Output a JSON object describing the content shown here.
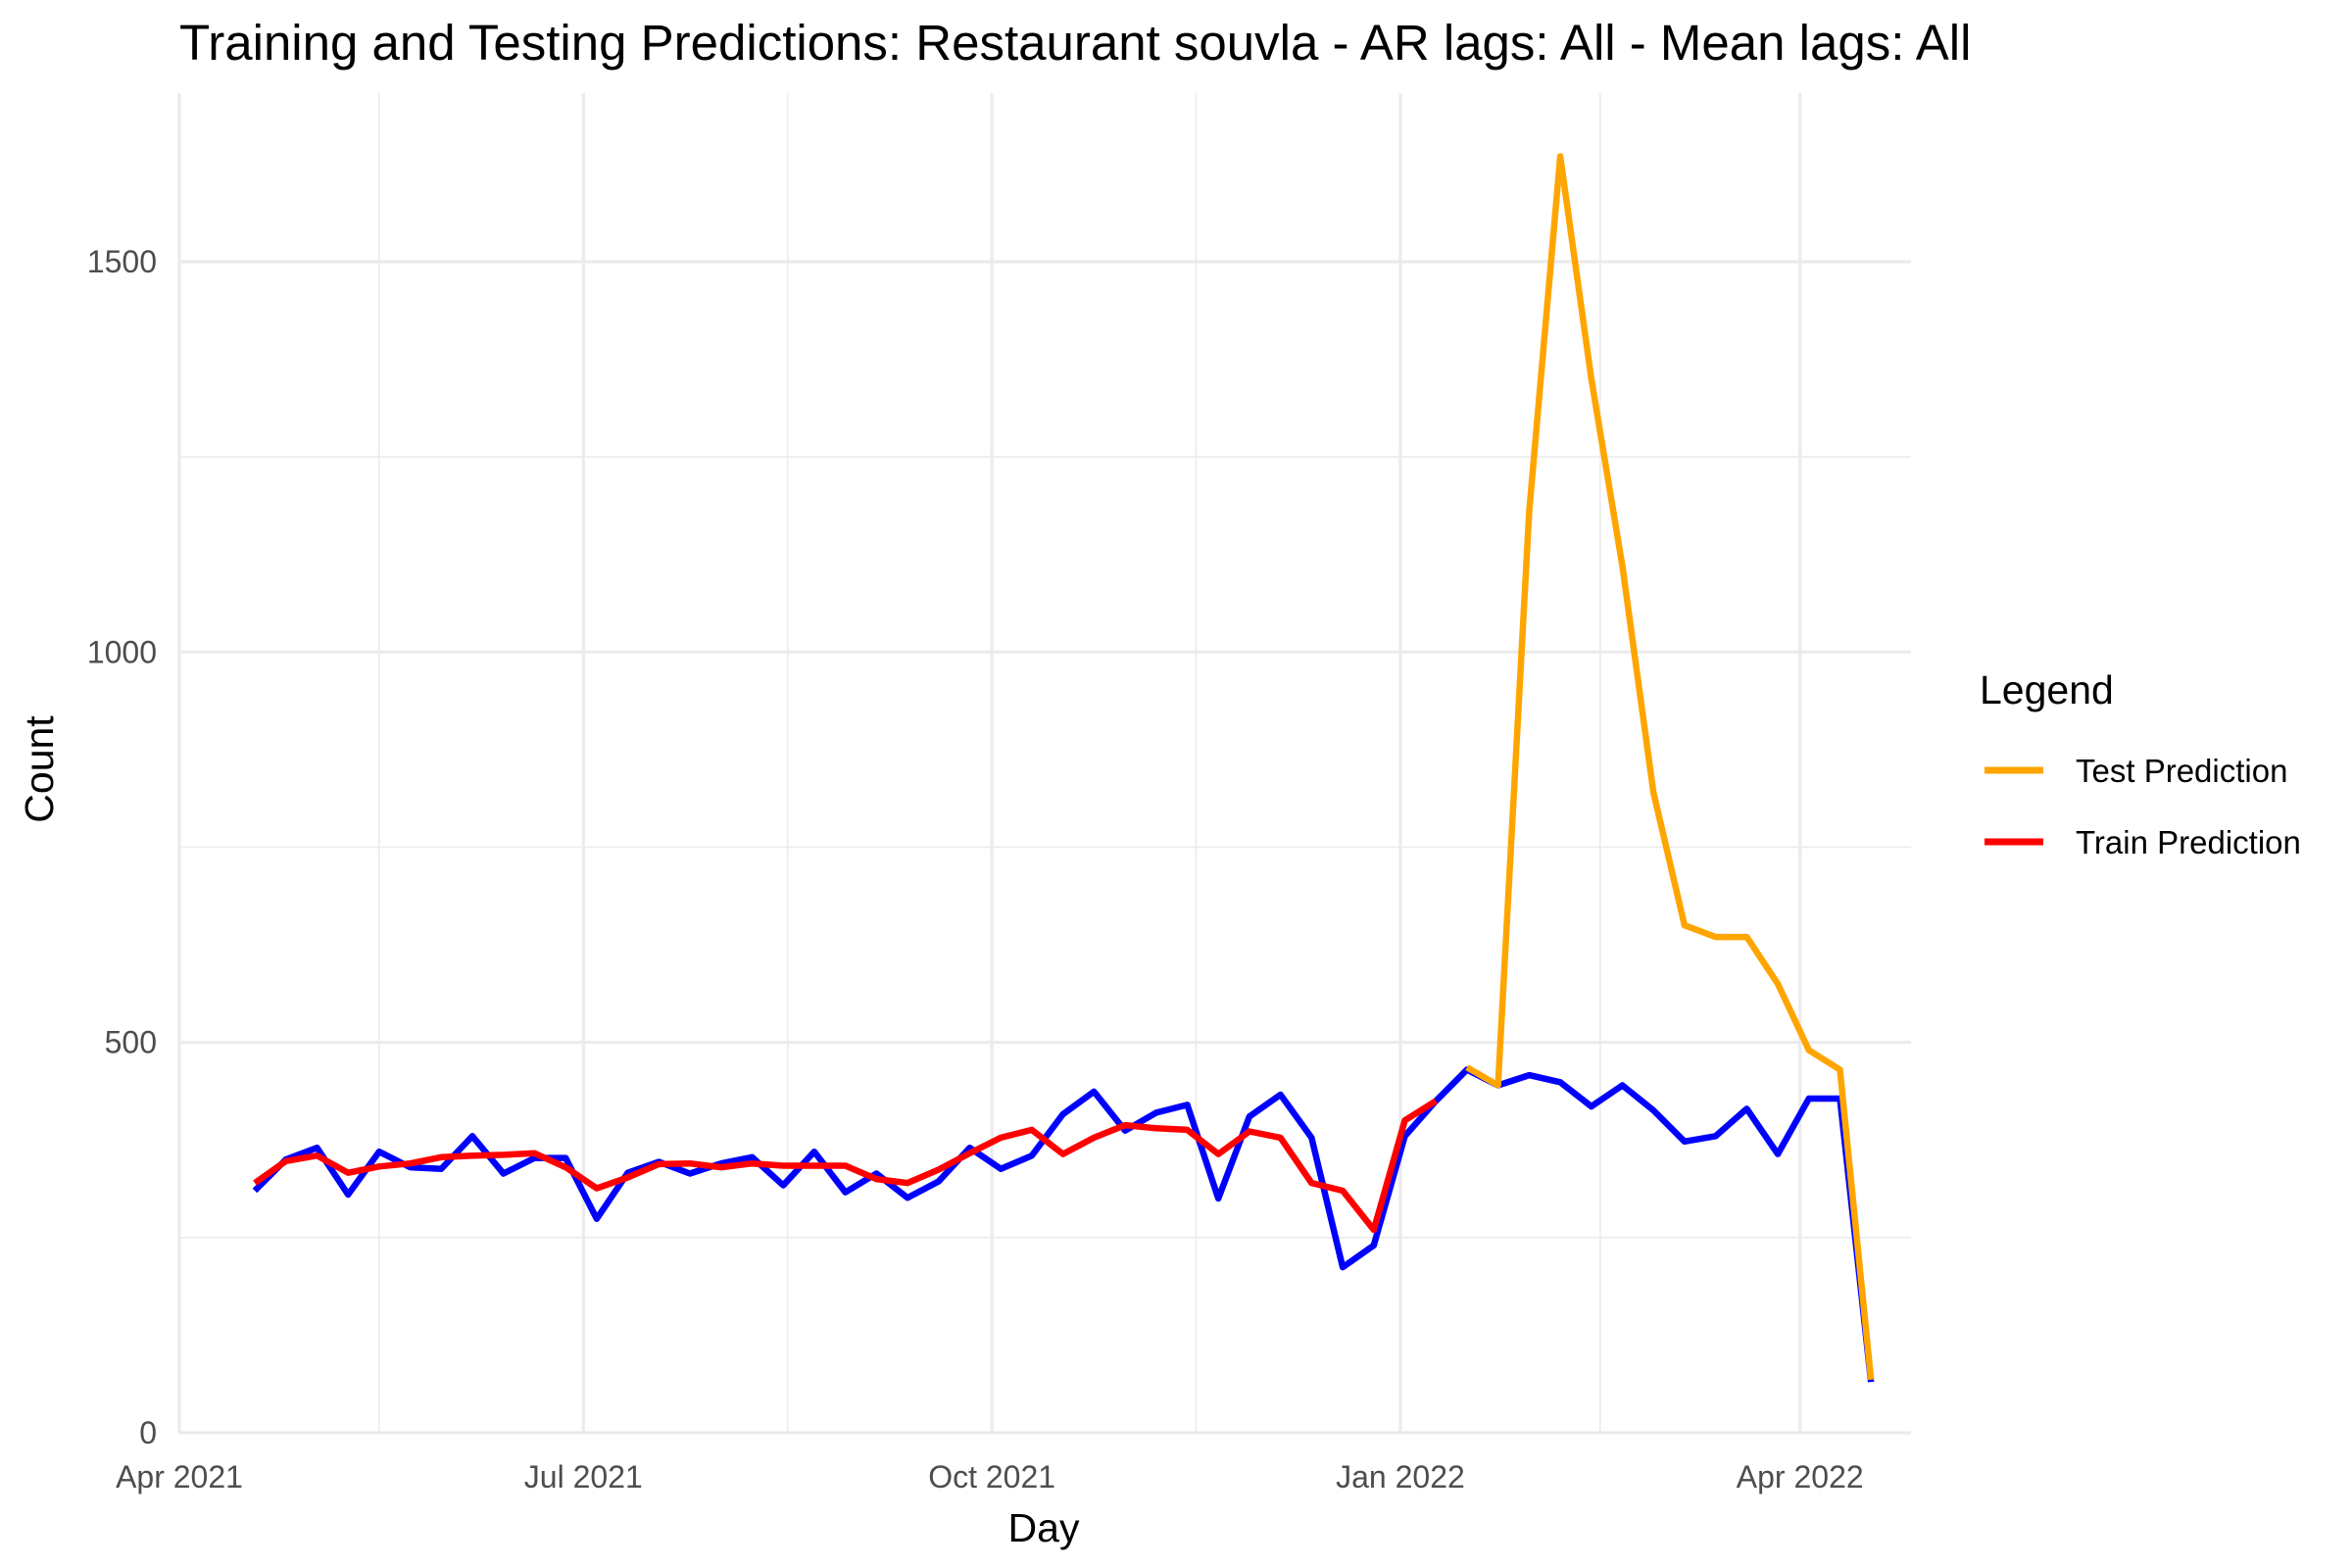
{
  "chart_data": {
    "type": "line",
    "title": "Training and Testing Predictions: Restaurant souvla - AR lags: All - Mean lags: All",
    "xlabel": "Day",
    "ylabel": "Count",
    "x_type": "date",
    "xlim": [
      "2021-04-01",
      "2022-04-26"
    ],
    "ylim": [
      0,
      1700
    ],
    "grid": true,
    "x_ticks": [
      {
        "date": "2021-04-01",
        "label": "Apr 2021"
      },
      {
        "date": "2021-07-01",
        "label": "Jul 2021"
      },
      {
        "date": "2021-10-01",
        "label": "Oct 2021"
      },
      {
        "date": "2022-01-01",
        "label": "Jan 2022"
      },
      {
        "date": "2022-04-01",
        "label": "Apr 2022"
      }
    ],
    "x_minor_ticks": [
      "2021-05-16",
      "2021-08-16",
      "2021-11-16",
      "2022-02-15"
    ],
    "y_ticks": [
      {
        "value": 0,
        "label": "0"
      },
      {
        "value": 500,
        "label": "500"
      },
      {
        "value": 1000,
        "label": "1000"
      },
      {
        "value": 1500,
        "label": "1500"
      }
    ],
    "y_minor_ticks": [
      250,
      750,
      1250
    ],
    "legend": {
      "title": "Legend",
      "position": "right",
      "entries": [
        {
          "label": "Test Prediction",
          "color": "#FFA500"
        },
        {
          "label": "Train Prediction",
          "color": "#FF0000"
        }
      ]
    },
    "series": [
      {
        "color": "#0000FF",
        "x": [
          "2021-04-18",
          "2021-04-25",
          "2021-05-02",
          "2021-05-09",
          "2021-05-16",
          "2021-05-23",
          "2021-05-30",
          "2021-06-06",
          "2021-06-13",
          "2021-06-20",
          "2021-06-27",
          "2021-07-04",
          "2021-07-11",
          "2021-07-18",
          "2021-07-25",
          "2021-08-01",
          "2021-08-08",
          "2021-08-15",
          "2021-08-22",
          "2021-08-29",
          "2021-09-05",
          "2021-09-12",
          "2021-09-19",
          "2021-09-26",
          "2021-10-03",
          "2021-10-10",
          "2021-10-17",
          "2021-10-24",
          "2021-10-31",
          "2021-11-07",
          "2021-11-14",
          "2021-11-21",
          "2021-11-28",
          "2021-12-05",
          "2021-12-12",
          "2021-12-19",
          "2021-12-26",
          "2022-01-02",
          "2022-01-09",
          "2022-01-16",
          "2022-01-23",
          "2022-01-30",
          "2022-02-06",
          "2022-02-13",
          "2022-02-20",
          "2022-02-27",
          "2022-03-06",
          "2022-03-13",
          "2022-03-20",
          "2022-03-27",
          "2022-04-03",
          "2022-04-10",
          "2022-04-17"
        ],
        "values": [
          310,
          350,
          365,
          305,
          360,
          340,
          338,
          380,
          332,
          352,
          352,
          274,
          333,
          347,
          332,
          345,
          353,
          317,
          360,
          308,
          332,
          301,
          322,
          365,
          338,
          355,
          408,
          437,
          387,
          410,
          420,
          300,
          405,
          433,
          378,
          212,
          240,
          380,
          425,
          465,
          445,
          458,
          449,
          418,
          445,
          413,
          373,
          380,
          415,
          357,
          428,
          428,
          65
        ]
      },
      {
        "name": "Train Prediction",
        "color": "#FF0000",
        "x": [
          "2021-04-18",
          "2021-04-25",
          "2021-05-02",
          "2021-05-09",
          "2021-05-16",
          "2021-05-23",
          "2021-05-30",
          "2021-06-06",
          "2021-06-13",
          "2021-06-20",
          "2021-06-27",
          "2021-07-04",
          "2021-07-11",
          "2021-07-18",
          "2021-07-25",
          "2021-08-01",
          "2021-08-08",
          "2021-08-15",
          "2021-08-22",
          "2021-08-29",
          "2021-09-05",
          "2021-09-12",
          "2021-09-19",
          "2021-09-26",
          "2021-10-03",
          "2021-10-10",
          "2021-10-17",
          "2021-10-24",
          "2021-10-31",
          "2021-11-07",
          "2021-11-14",
          "2021-11-21",
          "2021-11-28",
          "2021-12-05",
          "2021-12-12",
          "2021-12-19",
          "2021-12-26",
          "2022-01-02",
          "2022-01-09"
        ],
        "values": [
          320,
          348,
          355,
          333,
          341,
          345,
          353,
          355,
          356,
          358,
          340,
          313,
          327,
          344,
          345,
          340,
          345,
          342,
          342,
          342,
          325,
          320,
          337,
          358,
          378,
          388,
          357,
          378,
          394,
          390,
          388,
          357,
          386,
          378,
          320,
          310,
          260,
          400,
          425
        ]
      },
      {
        "name": "Test Prediction",
        "color": "#FFA500",
        "x": [
          "2022-01-16",
          "2022-01-23",
          "2022-01-30",
          "2022-02-06",
          "2022-02-13",
          "2022-02-20",
          "2022-02-27",
          "2022-03-06",
          "2022-03-13",
          "2022-03-20",
          "2022-03-27",
          "2022-04-03",
          "2022-04-10",
          "2022-04-17"
        ],
        "values": [
          468,
          445,
          1180,
          1635,
          1350,
          1110,
          820,
          650,
          635,
          635,
          575,
          490,
          465,
          68
        ]
      }
    ]
  }
}
